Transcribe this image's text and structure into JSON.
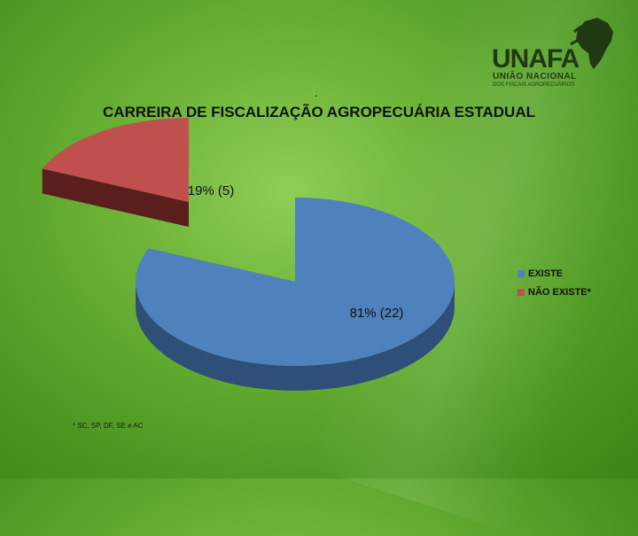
{
  "logo": {
    "name": "UNAFA",
    "subtitle_line1": "UNIÃO NACIONAL",
    "subtitle_line2": "DOS FISCAIS AGROPECUÁRIOS",
    "color": "#1f3a12"
  },
  "dot_mark": ".",
  "chart_data": {
    "type": "pie",
    "style": "3d-exploded",
    "title": "CARREIRA DE FISCALIZAÇÃO AGROPECUÁRIA ESTADUAL",
    "slices": [
      {
        "label": "EXISTE",
        "value": 22,
        "percent": 81,
        "data_label": "81% (22)",
        "color": "#4f81bd",
        "side_color": "#2d4f78"
      },
      {
        "label": "NÃO EXISTE*",
        "value": 5,
        "percent": 19,
        "data_label": "19% (5)",
        "color": "#c0504d",
        "side_color": "#5a1e1d"
      }
    ],
    "legend_position": "right"
  },
  "footnote": "* SC, SP, DF, SE e AC"
}
